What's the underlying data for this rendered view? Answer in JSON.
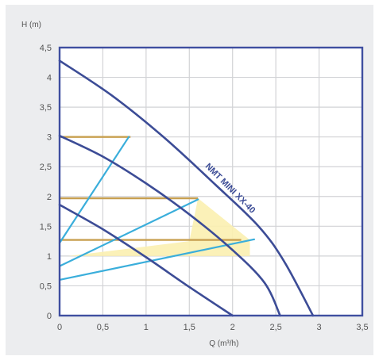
{
  "chart_data": {
    "type": "line",
    "title": "",
    "xlabel": "Q (m³/h)",
    "ylabel": "H (m)",
    "xlim": [
      0,
      3.5
    ],
    "ylim": [
      0,
      4.5
    ],
    "grid": true,
    "x_ticks": [
      "0",
      "0,5",
      "1",
      "1,5",
      "2",
      "2,5",
      "3",
      "3,5"
    ],
    "y_ticks": [
      "0",
      "0,5",
      "1",
      "1,5",
      "2",
      "2,5",
      "3",
      "3,5",
      "4",
      "4,5"
    ],
    "x_tick_values": [
      0,
      0.5,
      1,
      1.5,
      2,
      2.5,
      3,
      3.5
    ],
    "y_tick_values": [
      0,
      0.5,
      1,
      1.5,
      2,
      2.5,
      3,
      3.5,
      4,
      4.5
    ],
    "annotation": "NMT MINI XX-40",
    "colors": {
      "frame": "#3f4fa0",
      "pump_curve": "#3c4c96",
      "system_line": "#3aaedb",
      "setpoint_line": "#c8a050",
      "highlight_fill": "#fbefb0",
      "grid": "#d2d3d6",
      "plot_background": "#ffffff",
      "text": "#555555"
    },
    "series": [
      {
        "role": "pump_curve",
        "points": [
          [
            0,
            4.28
          ],
          [
            0.6,
            3.7
          ],
          [
            1.2,
            3.0
          ],
          [
            1.8,
            2.2
          ],
          [
            2.3,
            1.5
          ],
          [
            2.6,
            0.9
          ],
          [
            2.93,
            0
          ]
        ]
      },
      {
        "role": "pump_curve",
        "points": [
          [
            0,
            3.02
          ],
          [
            0.5,
            2.67
          ],
          [
            1.0,
            2.22
          ],
          [
            1.5,
            1.7
          ],
          [
            2.0,
            1.1
          ],
          [
            2.37,
            0.55
          ],
          [
            2.55,
            0
          ]
        ]
      },
      {
        "role": "pump_curve",
        "points": [
          [
            0,
            1.86
          ],
          [
            0.5,
            1.45
          ],
          [
            1.0,
            0.98
          ],
          [
            1.5,
            0.48
          ],
          [
            2.0,
            0
          ]
        ]
      },
      {
        "role": "system_line",
        "points": [
          [
            0,
            1.22
          ],
          [
            0.8,
            3.0
          ]
        ]
      },
      {
        "role": "system_line",
        "points": [
          [
            0,
            0.83
          ],
          [
            1.6,
            1.95
          ]
        ]
      },
      {
        "role": "system_line",
        "points": [
          [
            0,
            0.6
          ],
          [
            2.25,
            1.28
          ]
        ]
      },
      {
        "role": "setpoint_line",
        "points": [
          [
            0,
            3.0
          ],
          [
            0.82,
            3.0
          ]
        ]
      },
      {
        "role": "setpoint_line",
        "points": [
          [
            0,
            1.97
          ],
          [
            1.6,
            1.97
          ]
        ]
      },
      {
        "role": "setpoint_line",
        "points": [
          [
            0,
            1.27
          ],
          [
            2.1,
            1.27
          ]
        ]
      }
    ],
    "highlight_region": [
      [
        0.1,
        1.0
      ],
      [
        1.5,
        1.25
      ],
      [
        1.6,
        1.97
      ],
      [
        2.2,
        1.27
      ],
      [
        2.2,
        1.0
      ]
    ]
  }
}
